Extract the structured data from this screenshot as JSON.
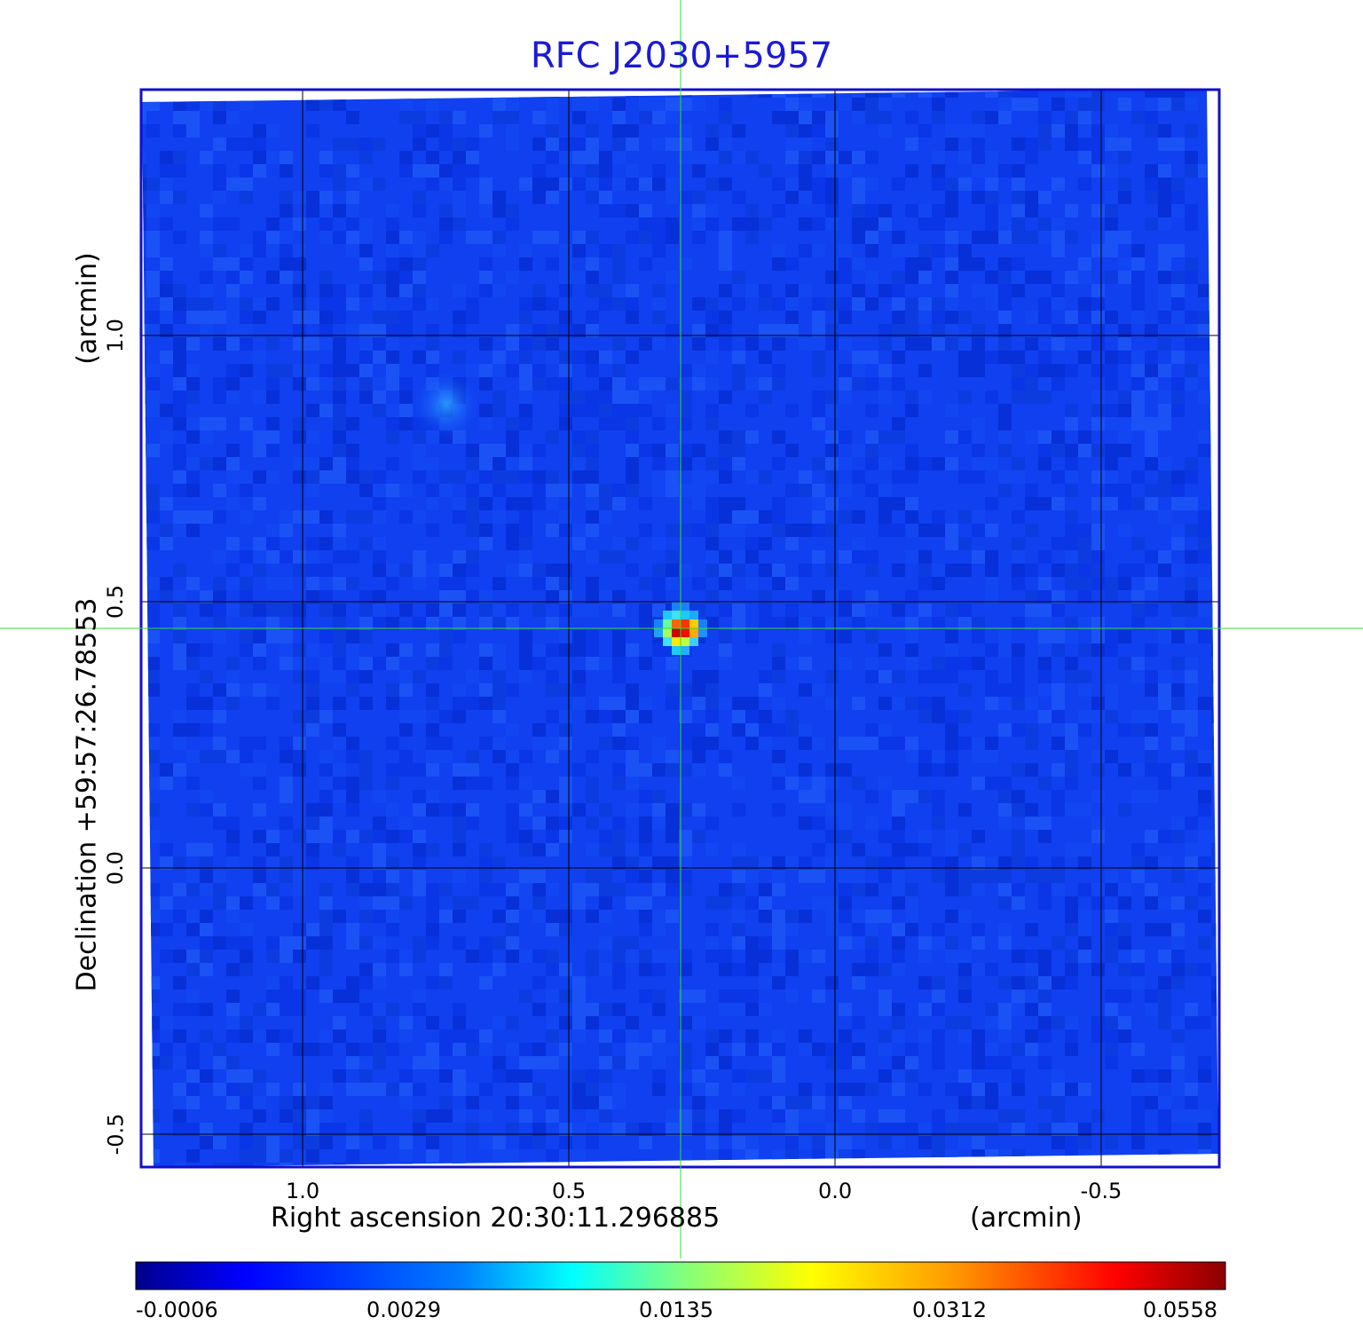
{
  "chart_data": {
    "type": "heatmap",
    "title": "RFC J2030+5957",
    "xlabel": "Right ascension  20:30:11.296885",
    "xunit": "(arcmin)",
    "ylabel": "Declination  +59:57:26.78553",
    "yunit": "(arcmin)",
    "x_ticks": [
      "1.0",
      "0.5",
      "0.0",
      "-0.5"
    ],
    "x_tick_values": [
      1.0,
      0.5,
      0.0,
      -0.5
    ],
    "y_ticks": [
      "1.0",
      "0.5",
      "0.0",
      "-0.5"
    ],
    "y_tick_values": [
      1.0,
      0.5,
      0.0,
      -0.5
    ],
    "xlim": [
      1.3,
      -0.72
    ],
    "ylim": [
      -0.56,
      1.46
    ],
    "grid": true,
    "crosshair": {
      "x": 0.29,
      "y": 0.45,
      "color": "#33dd33"
    },
    "sources": [
      {
        "x": 0.29,
        "y": 0.45,
        "peak": 0.0558
      },
      {
        "x": 0.73,
        "y": 0.87,
        "peak": 0.004
      }
    ],
    "colormap": "jet",
    "colorbar_ticks": [
      "-0.0006",
      "0.0029",
      "0.0135",
      "0.0312",
      "0.0558"
    ],
    "colorbar_values": [
      -0.0006,
      0.0029,
      0.0135,
      0.0312,
      0.0558
    ],
    "colors": {
      "frame": "#1010cc",
      "title": "#1a1ad6",
      "background": "#1040f0"
    }
  }
}
